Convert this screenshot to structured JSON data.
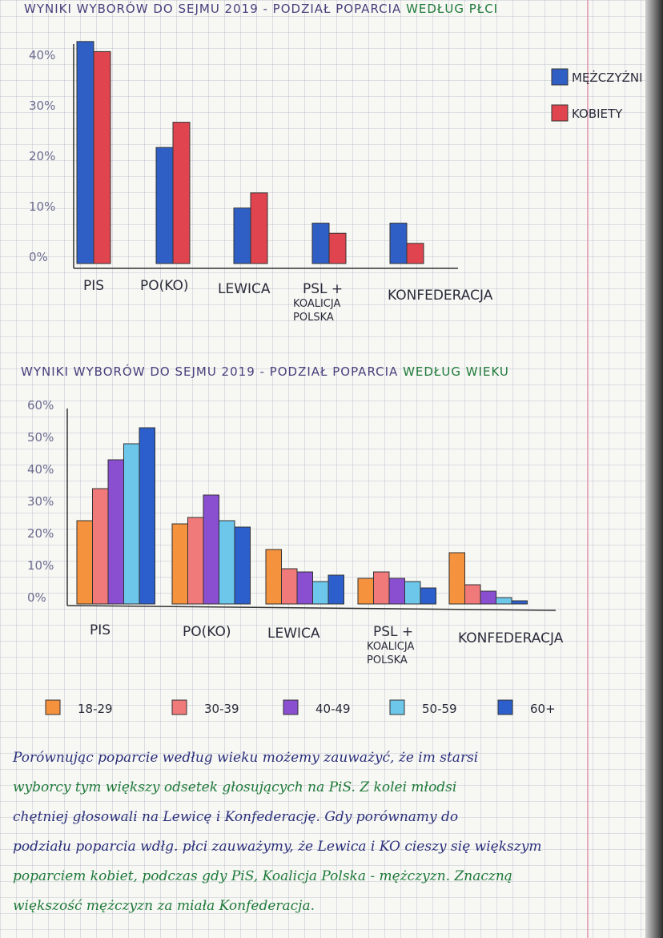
{
  "page": {
    "colors": {
      "men": "#2f5fc4",
      "women": "#e0454f",
      "age_18_29": "#f5923e",
      "age_30_39": "#f07a7a",
      "age_40_49": "#8a4fd0",
      "age_50_59": "#6cc7ea",
      "age_60_plus": "#2c5fcc"
    }
  },
  "chart1": {
    "title_prefix": "WYNIKI WYBORÓW DO SEJMU 2019 - PODZIAŁ POPARCIA",
    "title_highlight": "WEDŁUG PŁCI"
  },
  "chart2": {
    "title_prefix": "WYNIKI WYBORÓW DO SEJMU 2019 - PODZIAŁ POPARCIA",
    "title_highlight": "WEDŁUG WIEKU"
  },
  "chart_data": [
    {
      "type": "bar",
      "categories": [
        "PIS",
        "PO(KO)",
        "LEWICA",
        "PSL + KOALICJA POLSKA",
        "KONFEDERACJA"
      ],
      "series": [
        {
          "name": "MĘŻCZYŹNI",
          "values": [
            44,
            23,
            11,
            8,
            8
          ]
        },
        {
          "name": "KOBIETY",
          "values": [
            42,
            28,
            14,
            6,
            4
          ]
        }
      ],
      "yticks": [
        "0%",
        "10%",
        "20%",
        "30%",
        "40%"
      ],
      "ylim": [
        0,
        45
      ],
      "legend": "top-right",
      "grid": true
    },
    {
      "type": "bar",
      "categories": [
        "PIS",
        "PO(KO)",
        "LEWICA",
        "PSL + KOALICJA POLSKA",
        "KONFEDERACJA"
      ],
      "series": [
        {
          "name": "18-29",
          "values": [
            26,
            25,
            17,
            8,
            16
          ]
        },
        {
          "name": "30-39",
          "values": [
            36,
            27,
            11,
            10,
            6
          ]
        },
        {
          "name": "40-49",
          "values": [
            45,
            34,
            10,
            8,
            4
          ]
        },
        {
          "name": "50-59",
          "values": [
            50,
            26,
            7,
            7,
            2
          ]
        },
        {
          "name": "60+",
          "values": [
            55,
            24,
            9,
            5,
            1
          ]
        }
      ],
      "yticks": [
        "0%",
        "10%",
        "20%",
        "30%",
        "40%",
        "50%",
        "60%"
      ],
      "ylim": [
        0,
        65
      ],
      "legend": "bottom",
      "grid": true
    }
  ],
  "note": {
    "line1": "Porównując poparcie według wieku możemy zauważyć, że im starsi",
    "line2": "wyborcy tym większy odsetek głosujących na PiS. Z kolei młodsi",
    "line3": "chętniej głosowali na Lewicę i Konfederację. Gdy porównamy do",
    "line4": "podziału poparcia wdłg. płci zauważymy, że Lewica i KO cieszy się większym",
    "line5": "poparciem kobiet, podczas gdy PiS, Koalicja Polska - mężczyzn. Znaczną",
    "line6": "większość mężczyzn za miała Konfederacja."
  }
}
